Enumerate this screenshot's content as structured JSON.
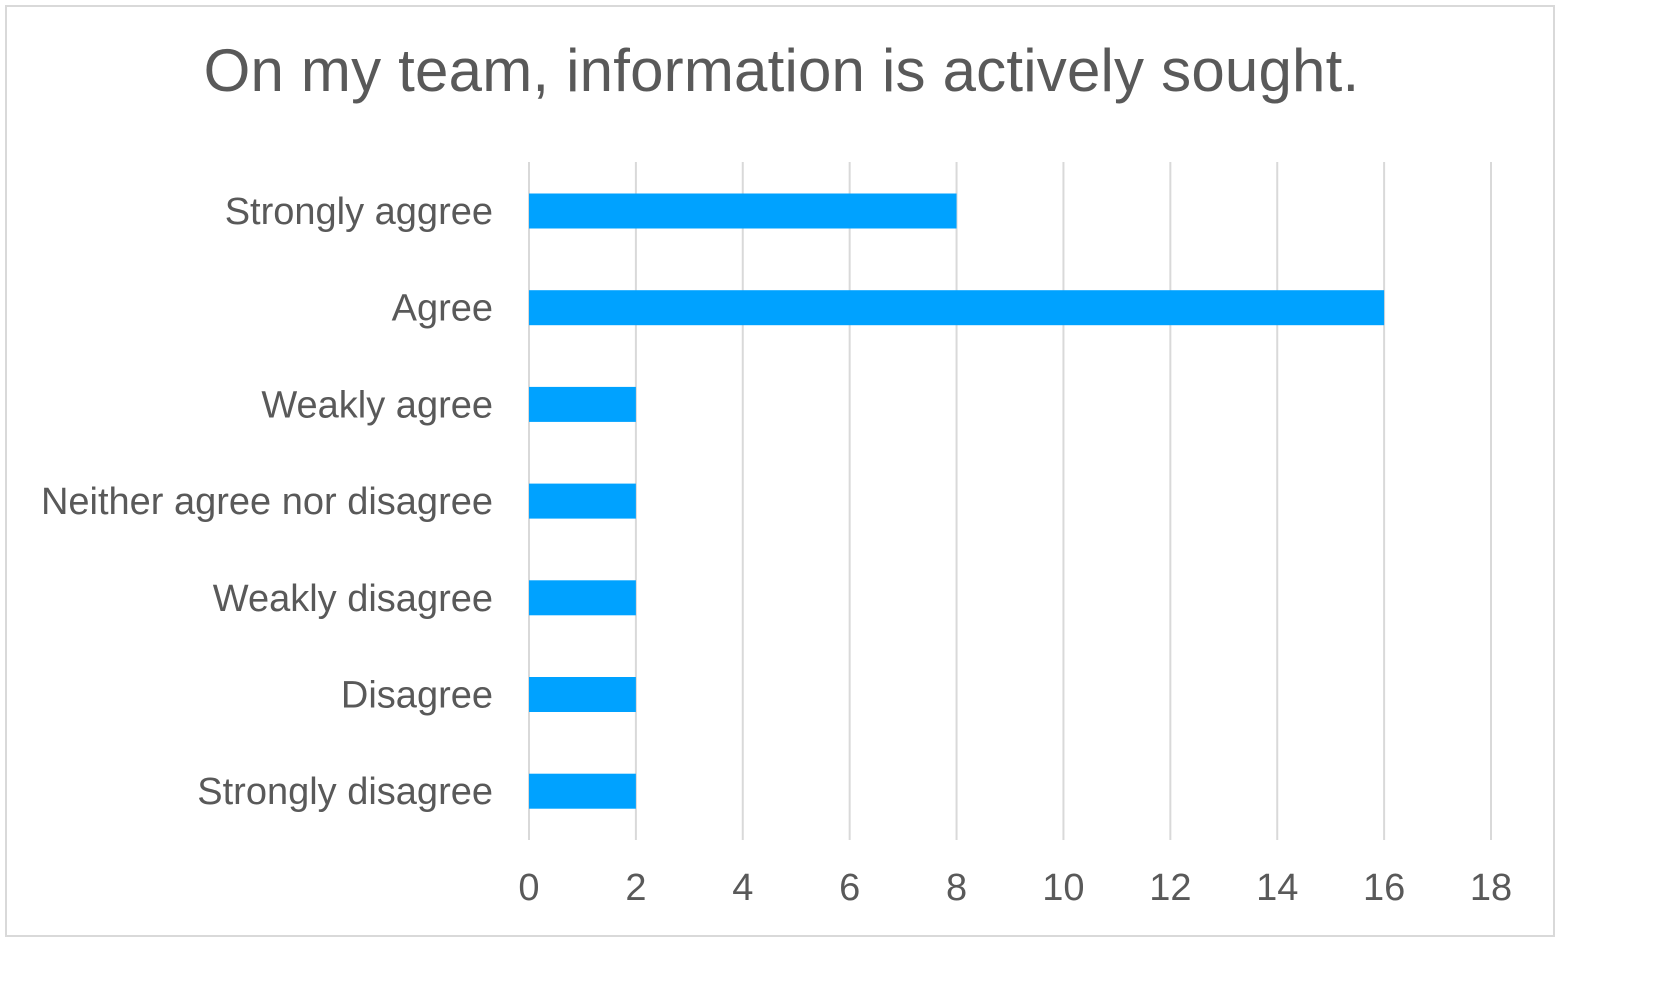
{
  "chart_data": {
    "type": "bar",
    "orientation": "horizontal",
    "title": "On my team, information is actively sought.",
    "categories": [
      "Strongly aggree",
      "Agree",
      "Weakly agree",
      "Neither agree nor disagree",
      "Weakly disagree",
      "Disagree",
      "Strongly disagree"
    ],
    "values": [
      8,
      16,
      2,
      2,
      2,
      2,
      2
    ],
    "xlim": [
      0,
      18
    ],
    "xticks": [
      0,
      2,
      4,
      6,
      8,
      10,
      12,
      14,
      16,
      18
    ],
    "xtick_labels": [
      "0",
      "2",
      "4",
      "6",
      "8",
      "10",
      "12",
      "14",
      "16",
      "18"
    ],
    "xlabel": "",
    "ylabel": "",
    "grid": "vertical",
    "legend": "none",
    "bar_color": "#00a2ff",
    "grid_color": "#d9d9d9",
    "text_color": "#595959"
  }
}
